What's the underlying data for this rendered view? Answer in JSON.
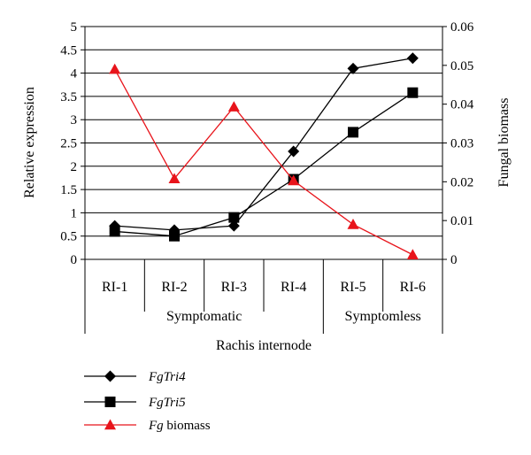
{
  "chart_data": {
    "type": "line",
    "categories": [
      "RI-1",
      "RI-2",
      "RI-3",
      "RI-4",
      "RI-5",
      "RI-6"
    ],
    "groups": [
      {
        "label": "Symptomatic",
        "categories": [
          "RI-1",
          "RI-2",
          "RI-3",
          "RI-4"
        ]
      },
      {
        "label": "Symptomless",
        "categories": [
          "RI-5",
          "RI-6"
        ]
      }
    ],
    "xlabel": "Rachis internode",
    "ylabel_left": "Relative expression",
    "ylabel_right": "Fungal biomass",
    "ylim_left": [
      0,
      5
    ],
    "ylim_right": [
      0,
      0.06
    ],
    "yticks_left": [
      "0",
      "0.5",
      "1",
      "1.5",
      "2",
      "2.5",
      "3",
      "3.5",
      "4",
      "4.5",
      "5"
    ],
    "yticks_right": [
      "0",
      "0.01",
      "0.02",
      "0.03",
      "0.04",
      "0.05",
      "0.06"
    ],
    "grid": true,
    "legend_position": "bottom-left",
    "series": [
      {
        "name": "FgTri4",
        "name_italic": "FgTri4",
        "name_rest": "",
        "axis": "left",
        "marker": "diamond",
        "color": "#000000",
        "values": [
          0.72,
          0.63,
          0.72,
          2.32,
          4.1,
          4.32
        ]
      },
      {
        "name": "FgTri5",
        "name_italic": "FgTri5",
        "name_rest": "",
        "axis": "left",
        "marker": "square",
        "color": "#000000",
        "values": [
          0.6,
          0.5,
          0.9,
          1.72,
          2.73,
          3.58
        ]
      },
      {
        "name": "Fg biomass",
        "name_italic": "Fg",
        "name_rest": " biomass",
        "axis": "right",
        "marker": "triangle",
        "color": "#e8141b",
        "values": [
          0.049,
          0.0208,
          0.0393,
          0.0203,
          0.009,
          0.0012
        ]
      }
    ]
  }
}
